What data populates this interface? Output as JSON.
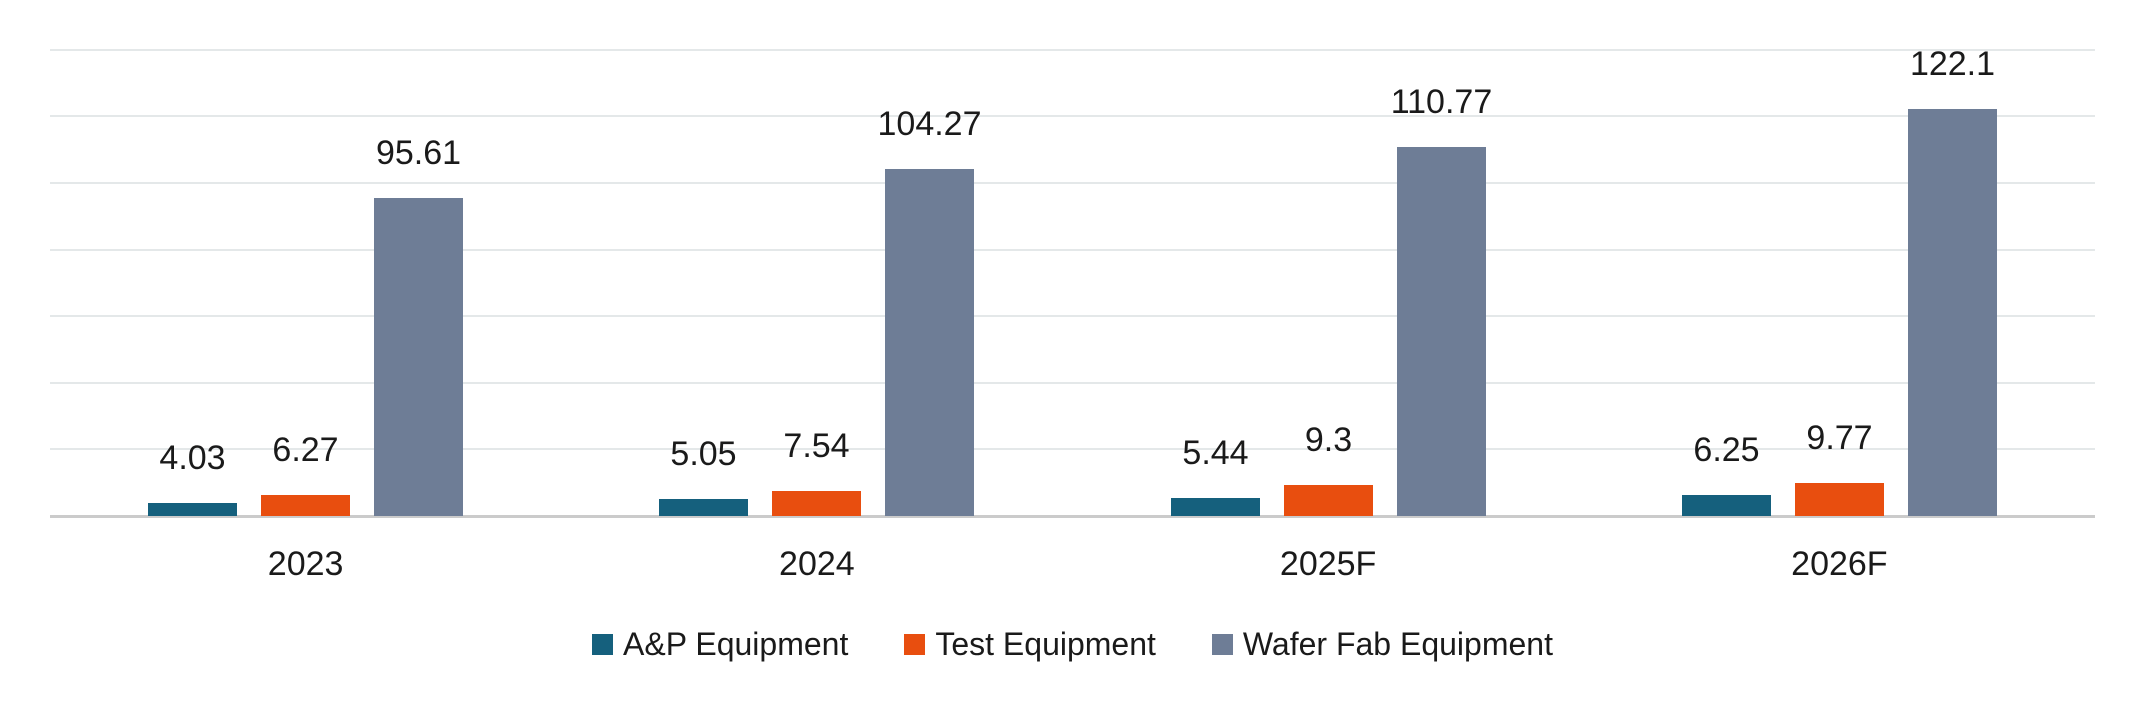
{
  "chart_data": {
    "type": "bar",
    "categories": [
      "2023",
      "2024",
      "2025F",
      "2026F"
    ],
    "series": [
      {
        "name": "A&P Equipment",
        "color": "#15607D",
        "values": [
          4.03,
          5.05,
          5.44,
          6.25
        ]
      },
      {
        "name": "Test Equipment",
        "color": "#E84E0F",
        "values": [
          6.27,
          7.54,
          9.3,
          9.77
        ]
      },
      {
        "name": "Wafer Fab Equipment",
        "color": "#6E7D96",
        "values": [
          95.61,
          104.27,
          110.77,
          122.1
        ]
      }
    ],
    "title": "",
    "xlabel": "",
    "ylabel": "",
    "ylim": [
      0,
      140
    ],
    "gridline_step": 20,
    "grid": "on",
    "y_axis_labels": "hidden",
    "value_labels": "on",
    "legend_position": "bottom-center"
  },
  "colors": {
    "background": "#FFFFFF",
    "gridline": "#E4E8E9",
    "axis_line": "#CBCBCB",
    "text": "#1A1A1A"
  }
}
